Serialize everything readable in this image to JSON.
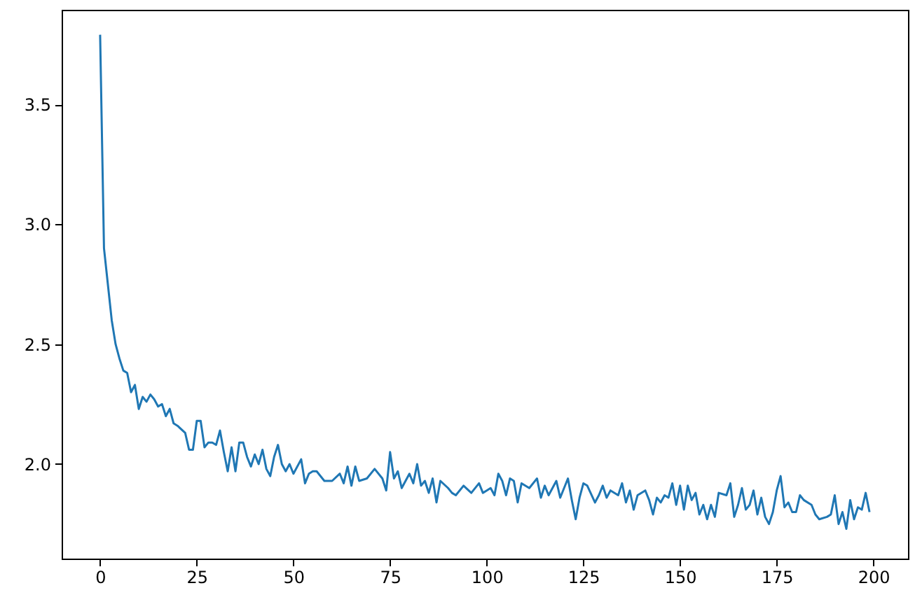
{
  "chart_data": {
    "type": "line",
    "x": [
      0,
      1,
      2,
      3,
      4,
      5,
      6,
      7,
      8,
      9,
      10,
      11,
      12,
      13,
      14,
      15,
      16,
      17,
      18,
      19,
      20,
      22,
      23,
      24,
      25,
      26,
      27,
      28,
      29,
      30,
      31,
      32,
      33,
      34,
      35,
      36,
      37,
      38,
      39,
      40,
      41,
      42,
      43,
      44,
      45,
      46,
      47,
      48,
      49,
      50,
      52,
      53,
      54,
      55,
      56,
      58,
      60,
      62,
      63,
      64,
      65,
      66,
      67,
      69,
      71,
      73,
      74,
      75,
      76,
      77,
      78,
      80,
      81,
      82,
      83,
      84,
      85,
      86,
      87,
      88,
      90,
      91,
      92,
      94,
      96,
      98,
      99,
      100,
      101,
      102,
      103,
      104,
      105,
      106,
      107,
      108,
      109,
      111,
      113,
      114,
      115,
      116,
      118,
      119,
      120,
      121,
      122,
      123,
      124,
      125,
      126,
      128,
      129,
      130,
      131,
      132,
      134,
      135,
      136,
      137,
      138,
      139,
      141,
      142,
      143,
      144,
      145,
      146,
      147,
      148,
      149,
      150,
      151,
      152,
      153,
      154,
      155,
      156,
      157,
      158,
      159,
      160,
      162,
      163,
      164,
      165,
      166,
      167,
      168,
      169,
      170,
      171,
      172,
      173,
      174,
      175,
      176,
      177,
      178,
      179,
      180,
      181,
      182,
      184,
      185,
      186,
      188,
      189,
      190,
      191,
      192,
      193,
      194,
      195,
      196,
      197,
      198,
      199
    ],
    "series": [
      {
        "color": "#1f77b4",
        "values": [
          3.79,
          2.9,
          2.75,
          2.6,
          2.5,
          2.44,
          2.39,
          2.38,
          2.3,
          2.33,
          2.23,
          2.28,
          2.26,
          2.29,
          2.27,
          2.24,
          2.25,
          2.2,
          2.23,
          2.17,
          2.16,
          2.13,
          2.06,
          2.06,
          2.18,
          2.18,
          2.07,
          2.09,
          2.09,
          2.08,
          2.14,
          2.05,
          1.97,
          2.07,
          1.97,
          2.09,
          2.09,
          2.03,
          1.99,
          2.04,
          2.0,
          2.06,
          1.98,
          1.95,
          2.03,
          2.08,
          2.0,
          1.97,
          2.0,
          1.96,
          2.02,
          1.92,
          1.96,
          1.97,
          1.97,
          1.93,
          1.93,
          1.96,
          1.92,
          1.99,
          1.91,
          1.99,
          1.93,
          1.94,
          1.98,
          1.94,
          1.89,
          2.05,
          1.94,
          1.97,
          1.9,
          1.96,
          1.92,
          2.0,
          1.91,
          1.93,
          1.88,
          1.94,
          1.84,
          1.93,
          1.9,
          1.88,
          1.87,
          1.91,
          1.88,
          1.92,
          1.88,
          1.89,
          1.9,
          1.87,
          1.96,
          1.93,
          1.87,
          1.94,
          1.93,
          1.84,
          1.92,
          1.9,
          1.94,
          1.86,
          1.91,
          1.87,
          1.93,
          1.86,
          1.9,
          1.94,
          1.85,
          1.77,
          1.86,
          1.92,
          1.91,
          1.84,
          1.87,
          1.91,
          1.86,
          1.89,
          1.87,
          1.92,
          1.84,
          1.89,
          1.81,
          1.87,
          1.89,
          1.85,
          1.79,
          1.86,
          1.84,
          1.87,
          1.86,
          1.92,
          1.83,
          1.91,
          1.81,
          1.91,
          1.85,
          1.88,
          1.79,
          1.83,
          1.77,
          1.83,
          1.78,
          1.88,
          1.87,
          1.92,
          1.78,
          1.83,
          1.9,
          1.81,
          1.83,
          1.89,
          1.79,
          1.86,
          1.78,
          1.75,
          1.8,
          1.89,
          1.95,
          1.82,
          1.84,
          1.8,
          1.8,
          1.87,
          1.85,
          1.83,
          1.79,
          1.77,
          1.78,
          1.79,
          1.87,
          1.75,
          1.8,
          1.73,
          1.85,
          1.77,
          1.82,
          1.81,
          1.88,
          1.8
        ]
      }
    ],
    "xlim": [
      -9.95,
      208.95
    ],
    "xticks": [
      0,
      25,
      50,
      75,
      100,
      125,
      150,
      175,
      200
    ],
    "ylim": [
      1.606,
      3.894
    ],
    "yticks": [
      {
        "value": 2.0,
        "label": "2.0"
      },
      {
        "value": 2.5,
        "label": "2.5"
      },
      {
        "value": 3.0,
        "label": "3.0"
      },
      {
        "value": 3.5,
        "label": "3.5"
      }
    ],
    "grid": false,
    "marker": "none",
    "line_style": "solid"
  }
}
